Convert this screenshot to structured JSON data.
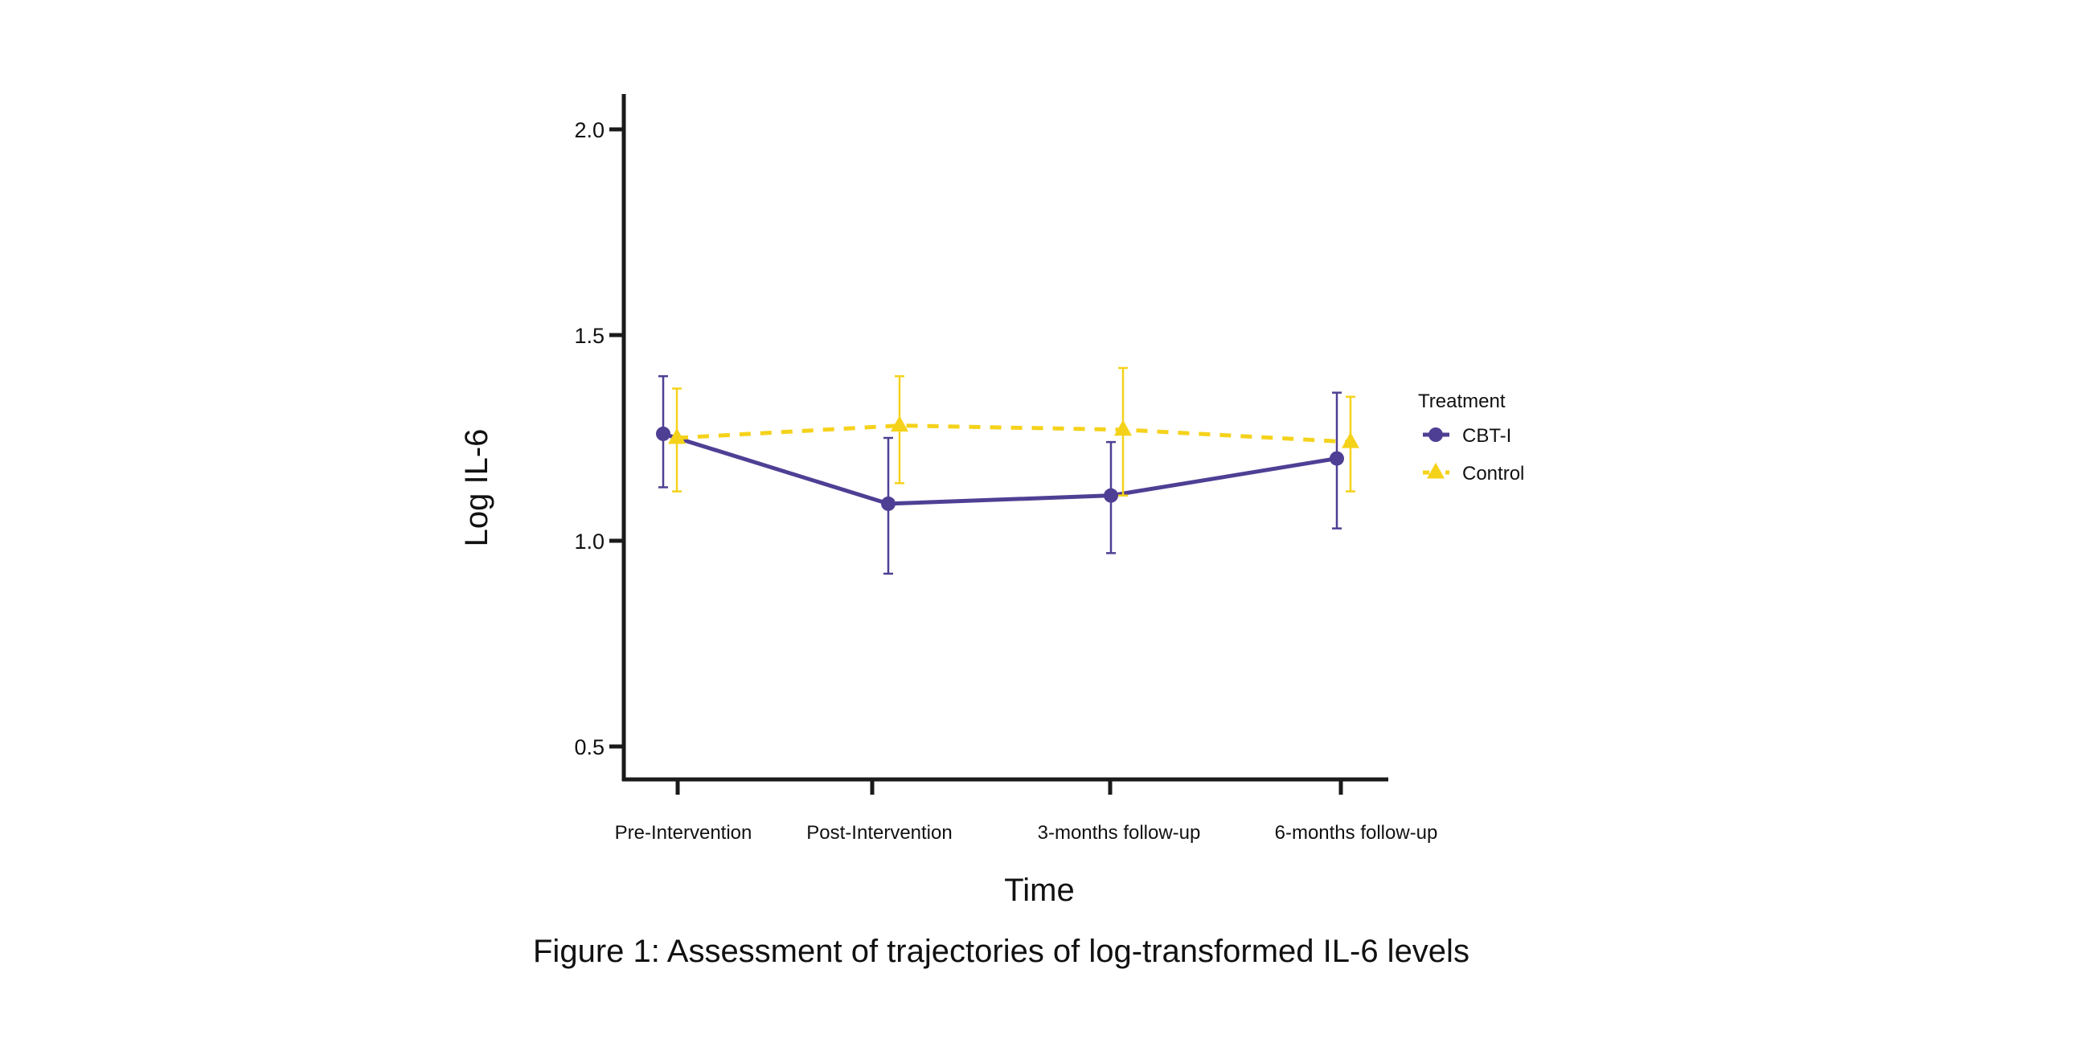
{
  "figure": {
    "caption": "Figure 1: Assessment of trajectories of log-transformed IL-6 levels"
  },
  "chart_data": {
    "type": "line",
    "title": "",
    "xlabel": "Time",
    "ylabel": "Log IL-6",
    "categories": [
      "Pre-Intervention",
      "Post-Intervention",
      "3-months follow-up",
      "6-months follow-up"
    ],
    "ylim": [
      0.45,
      2.08
    ],
    "yticks": [
      0.5,
      1.0,
      1.5,
      2.0
    ],
    "ytick_labels": [
      "0.5",
      "1.0",
      "1.5",
      "2.0"
    ],
    "grid": false,
    "error_bars": true,
    "legend": {
      "title": "Treatment",
      "position": "right",
      "entries": [
        "CBT-I",
        "Control"
      ]
    },
    "series": [
      {
        "name": "CBT-I",
        "color": "#4f3f94",
        "marker": "circle",
        "line_style": "solid",
        "values": [
          1.26,
          1.09,
          1.11,
          1.2
        ],
        "err_upper": [
          1.4,
          1.25,
          1.24,
          1.36
        ],
        "err_lower": [
          1.13,
          0.92,
          0.97,
          1.03
        ]
      },
      {
        "name": "Control",
        "color": "#f5d21a",
        "marker": "triangle",
        "line_style": "dashed",
        "values": [
          1.25,
          1.28,
          1.27,
          1.24
        ],
        "err_upper": [
          1.37,
          1.4,
          1.42,
          1.35
        ],
        "err_lower": [
          1.12,
          1.14,
          1.11,
          1.12
        ]
      }
    ]
  }
}
